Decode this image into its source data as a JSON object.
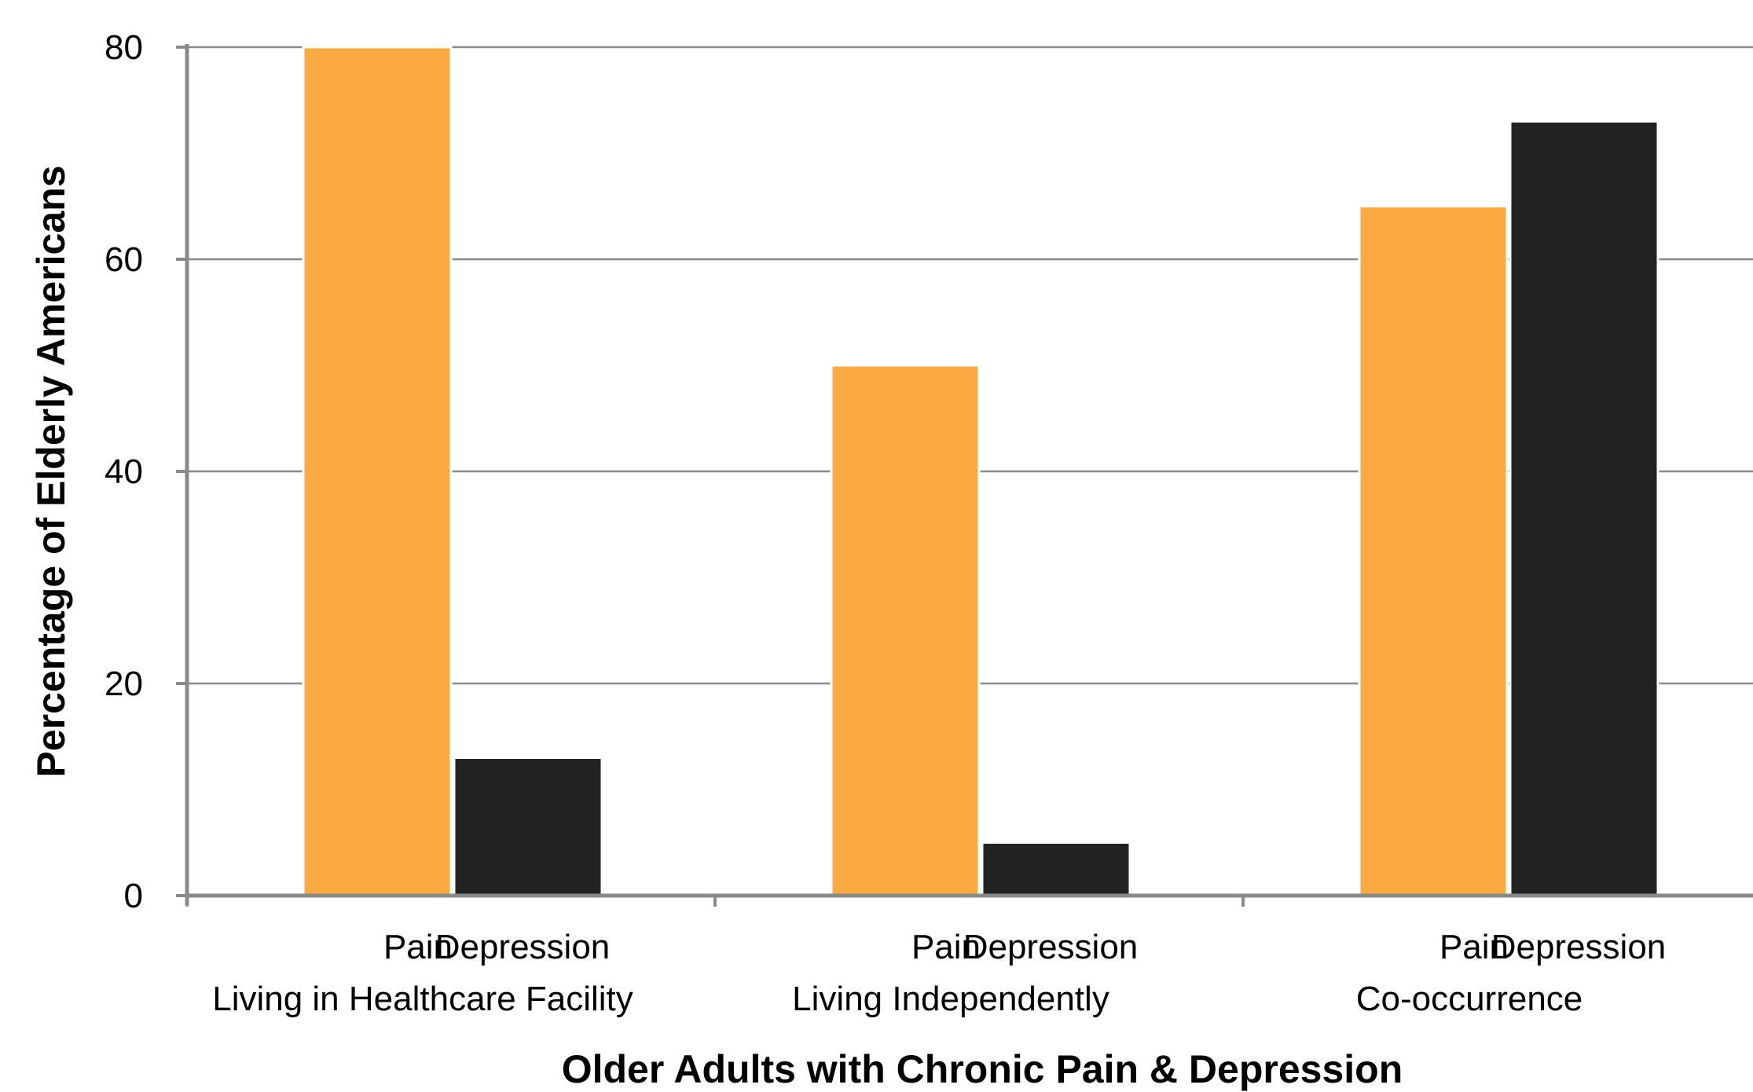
{
  "chart_data": {
    "type": "bar",
    "xlabel": "Older Adults with Chronic Pain & Depression",
    "ylabel": "Percentage of Elderly Americans",
    "ylim": [
      0,
      80
    ],
    "yticks": [
      "0",
      "20",
      "40",
      "60",
      "80"
    ],
    "grid": true,
    "groups": [
      {
        "label": "Living in Healthcare Facility",
        "bars": [
          {
            "label": "Pain",
            "value": 80,
            "color": "#FBAA42"
          },
          {
            "label": "Depression",
            "value": 13,
            "color": "#222222"
          }
        ]
      },
      {
        "label": "Living Independently",
        "bars": [
          {
            "label": "Pain",
            "value": 50,
            "color": "#FBAA42"
          },
          {
            "label": "Depression",
            "value": 5,
            "color": "#222222"
          }
        ]
      },
      {
        "label": "Co-occurrence",
        "bars": [
          {
            "label": "Pain",
            "value": 65,
            "color": "#FBAA42"
          },
          {
            "label": "Depression",
            "value": 73,
            "color": "#222222"
          }
        ]
      }
    ]
  }
}
